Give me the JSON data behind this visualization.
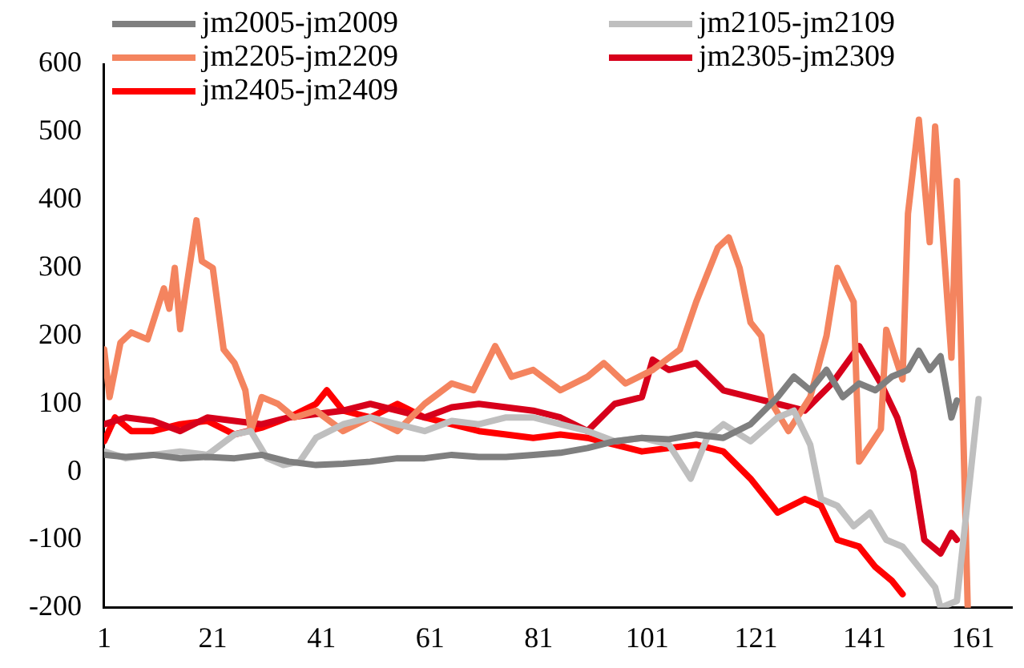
{
  "chart_data": {
    "type": "line",
    "xlim": [
      1,
      168
    ],
    "xticks": [
      1,
      21,
      41,
      61,
      81,
      101,
      121,
      141,
      161
    ],
    "ylim": [
      -200,
      600
    ],
    "yticks": [
      -200,
      -100,
      0,
      100,
      200,
      300,
      400,
      500,
      600
    ],
    "grid": false,
    "legend": "top",
    "marker": "none",
    "line_style": "solid",
    "series": [
      {
        "name": "jm2005-jm2009",
        "color": "#7f7f7f",
        "x": [
          1,
          5,
          10,
          15,
          20,
          25,
          30,
          35,
          40,
          45,
          50,
          55,
          60,
          65,
          70,
          75,
          80,
          85,
          90,
          95,
          100,
          105,
          110,
          115,
          120,
          125,
          128,
          131,
          134,
          137,
          140,
          143,
          146,
          149,
          151,
          153,
          155,
          157,
          158
        ],
        "values": [
          25,
          22,
          25,
          20,
          22,
          20,
          25,
          15,
          10,
          12,
          15,
          20,
          20,
          25,
          22,
          22,
          25,
          28,
          35,
          45,
          50,
          48,
          55,
          50,
          70,
          110,
          140,
          120,
          150,
          110,
          130,
          120,
          140,
          150,
          178,
          150,
          170,
          80,
          105
        ]
      },
      {
        "name": "jm2105-jm2109",
        "color": "#bfbfbf",
        "x": [
          1,
          5,
          10,
          15,
          20,
          25,
          28,
          31,
          34,
          37,
          40,
          45,
          50,
          55,
          60,
          65,
          70,
          75,
          80,
          85,
          90,
          95,
          100,
          105,
          109,
          112,
          115,
          120,
          125,
          128,
          131,
          133,
          136,
          139,
          142,
          145,
          148,
          150,
          152,
          154,
          155,
          158,
          162
        ],
        "values": [
          30,
          20,
          25,
          30,
          25,
          55,
          60,
          20,
          10,
          15,
          50,
          70,
          80,
          70,
          60,
          75,
          70,
          80,
          80,
          70,
          60,
          45,
          50,
          40,
          -10,
          50,
          70,
          45,
          80,
          90,
          40,
          -40,
          -50,
          -80,
          -60,
          -100,
          -110,
          -130,
          -150,
          -170,
          -200,
          -190,
          107
        ]
      },
      {
        "name": "jm2205-jm2209",
        "color": "#f4845f",
        "x": [
          1,
          2,
          4,
          6,
          9,
          12,
          13,
          14,
          15,
          18,
          19,
          21,
          23,
          25,
          27,
          28,
          30,
          33,
          36,
          40,
          45,
          50,
          55,
          60,
          65,
          69,
          73,
          76,
          80,
          85,
          90,
          93,
          97,
          102,
          107,
          110,
          114,
          116,
          118,
          120,
          122,
          124,
          127,
          131,
          134,
          136,
          139,
          140,
          144,
          145,
          148,
          149,
          151,
          153,
          154,
          157,
          158,
          160
        ],
        "values": [
          180,
          110,
          190,
          205,
          195,
          270,
          240,
          300,
          210,
          370,
          310,
          300,
          180,
          160,
          120,
          60,
          110,
          100,
          80,
          90,
          60,
          80,
          60,
          100,
          130,
          120,
          185,
          140,
          150,
          120,
          140,
          160,
          130,
          150,
          180,
          250,
          330,
          345,
          300,
          220,
          200,
          100,
          60,
          110,
          200,
          300,
          250,
          15,
          63,
          209,
          136,
          380,
          518,
          338,
          508,
          168,
          428,
          -200
        ]
      },
      {
        "name": "jm2305-jm2309",
        "color": "#d7001b",
        "x": [
          1,
          5,
          10,
          15,
          20,
          25,
          30,
          35,
          40,
          45,
          50,
          55,
          60,
          65,
          70,
          75,
          80,
          85,
          90,
          95,
          100,
          102,
          105,
          110,
          115,
          120,
          125,
          130,
          135,
          140,
          144,
          147,
          150,
          152,
          155,
          157,
          158
        ],
        "values": [
          70,
          80,
          75,
          60,
          80,
          75,
          70,
          80,
          85,
          90,
          100,
          90,
          80,
          95,
          100,
          95,
          90,
          80,
          60,
          100,
          110,
          165,
          150,
          160,
          120,
          110,
          100,
          90,
          130,
          185,
          130,
          80,
          0,
          -100,
          -120,
          -90,
          -100
        ]
      },
      {
        "name": "jm2405-jm2409",
        "color": "#ff0000",
        "x": [
          1,
          3,
          6,
          10,
          15,
          20,
          25,
          30,
          35,
          40,
          42,
          45,
          50,
          55,
          60,
          65,
          70,
          75,
          80,
          85,
          90,
          95,
          100,
          105,
          110,
          115,
          120,
          125,
          130,
          133,
          136,
          140,
          143,
          146,
          148
        ],
        "values": [
          45,
          80,
          60,
          60,
          70,
          75,
          55,
          65,
          80,
          100,
          120,
          90,
          80,
          100,
          80,
          70,
          60,
          55,
          50,
          55,
          50,
          40,
          30,
          35,
          40,
          30,
          -10,
          -60,
          -40,
          -50,
          -100,
          -110,
          -140,
          -160,
          -180
        ]
      }
    ]
  }
}
